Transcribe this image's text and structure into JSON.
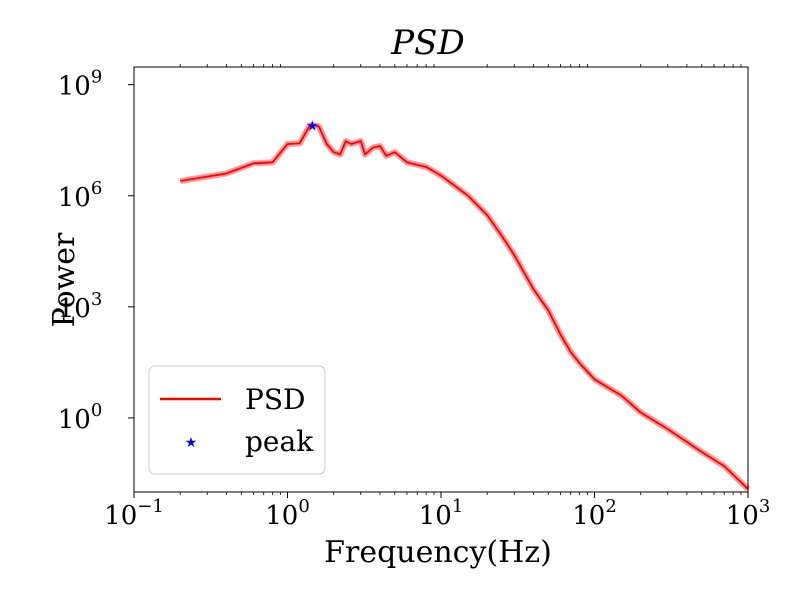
{
  "chart_data": {
    "type": "line",
    "title": "PSD",
    "xlabel": "Frequency(Hz)",
    "ylabel": "Power",
    "xscale": "log",
    "yscale": "log",
    "xlim": [
      0.1,
      1000
    ],
    "ylim": [
      0.01,
      3000000000
    ],
    "grid": false,
    "legend_position": "lower-left",
    "x_ticks": [
      {
        "value": 0.1,
        "base": "10",
        "exp": "−1"
      },
      {
        "value": 1,
        "base": "10",
        "exp": "0"
      },
      {
        "value": 10,
        "base": "10",
        "exp": "1"
      },
      {
        "value": 100,
        "base": "10",
        "exp": "2"
      },
      {
        "value": 1000,
        "base": "10",
        "exp": "3"
      }
    ],
    "y_ticks": [
      {
        "value": 1,
        "base": "10",
        "exp": "0"
      },
      {
        "value": 1000,
        "base": "10",
        "exp": "3"
      },
      {
        "value": 1000000,
        "base": "10",
        "exp": "6"
      },
      {
        "value": 1000000000,
        "base": "10",
        "exp": "9"
      }
    ],
    "series": [
      {
        "name": "PSD",
        "color": "#ff0000",
        "style": "line",
        "x": [
          0.2,
          0.4,
          0.6,
          0.8,
          1.0,
          1.2,
          1.4,
          1.5,
          1.6,
          1.8,
          2.0,
          2.2,
          2.4,
          2.6,
          3.0,
          3.2,
          3.6,
          4.0,
          4.4,
          5.0,
          6,
          8,
          10,
          12,
          15,
          20,
          25,
          30,
          40,
          50,
          60,
          70,
          80,
          100,
          150,
          200,
          300,
          500,
          700,
          1000
        ],
        "y": [
          2500000,
          4000000,
          7500000,
          8000000,
          25000000,
          26000000,
          80000000,
          80000000,
          75000000,
          25000000,
          15000000,
          13000000,
          30000000,
          25000000,
          30000000,
          13000000,
          20000000,
          22000000,
          12000000,
          15000000,
          8000000,
          6000000,
          3500000,
          2000000,
          1000000,
          300000,
          80000,
          25000,
          3000,
          800,
          180,
          60,
          30,
          11,
          4,
          1.4,
          0.5,
          0.12,
          0.05,
          0.012
        ]
      },
      {
        "name": "peak",
        "color": "#0000ff",
        "style": "marker-star",
        "x": [
          1.45
        ],
        "y": [
          80000000
        ]
      }
    ]
  }
}
